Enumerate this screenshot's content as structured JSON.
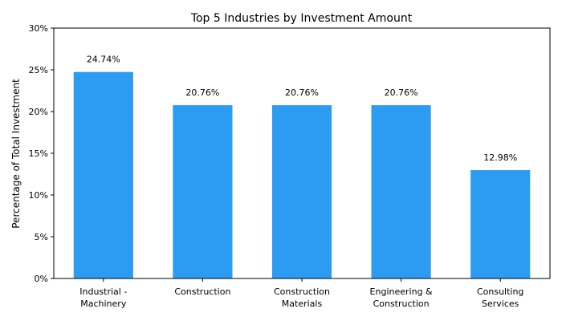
{
  "chart_data": {
    "type": "bar",
    "title": "Top 5 Industries by Investment Amount",
    "xlabel": "",
    "ylabel": "Percentage of Total Investment",
    "categories": [
      [
        "Industrial -",
        "Machinery"
      ],
      [
        "Construction"
      ],
      [
        "Construction",
        "Materials"
      ],
      [
        "Engineering &",
        "Construction"
      ],
      [
        "Consulting",
        "Services"
      ]
    ],
    "values": [
      24.74,
      20.76,
      20.76,
      20.76,
      12.98
    ],
    "data_labels": [
      "24.74%",
      "20.76%",
      "20.76%",
      "20.76%",
      "12.98%"
    ],
    "ylim": [
      0,
      30
    ],
    "yticks": [
      0,
      5,
      10,
      15,
      20,
      25,
      30
    ],
    "ytick_labels": [
      "0%",
      "5%",
      "10%",
      "15%",
      "20%",
      "25%",
      "30%"
    ],
    "grid": false,
    "bar_color": "#2b9cf2"
  }
}
